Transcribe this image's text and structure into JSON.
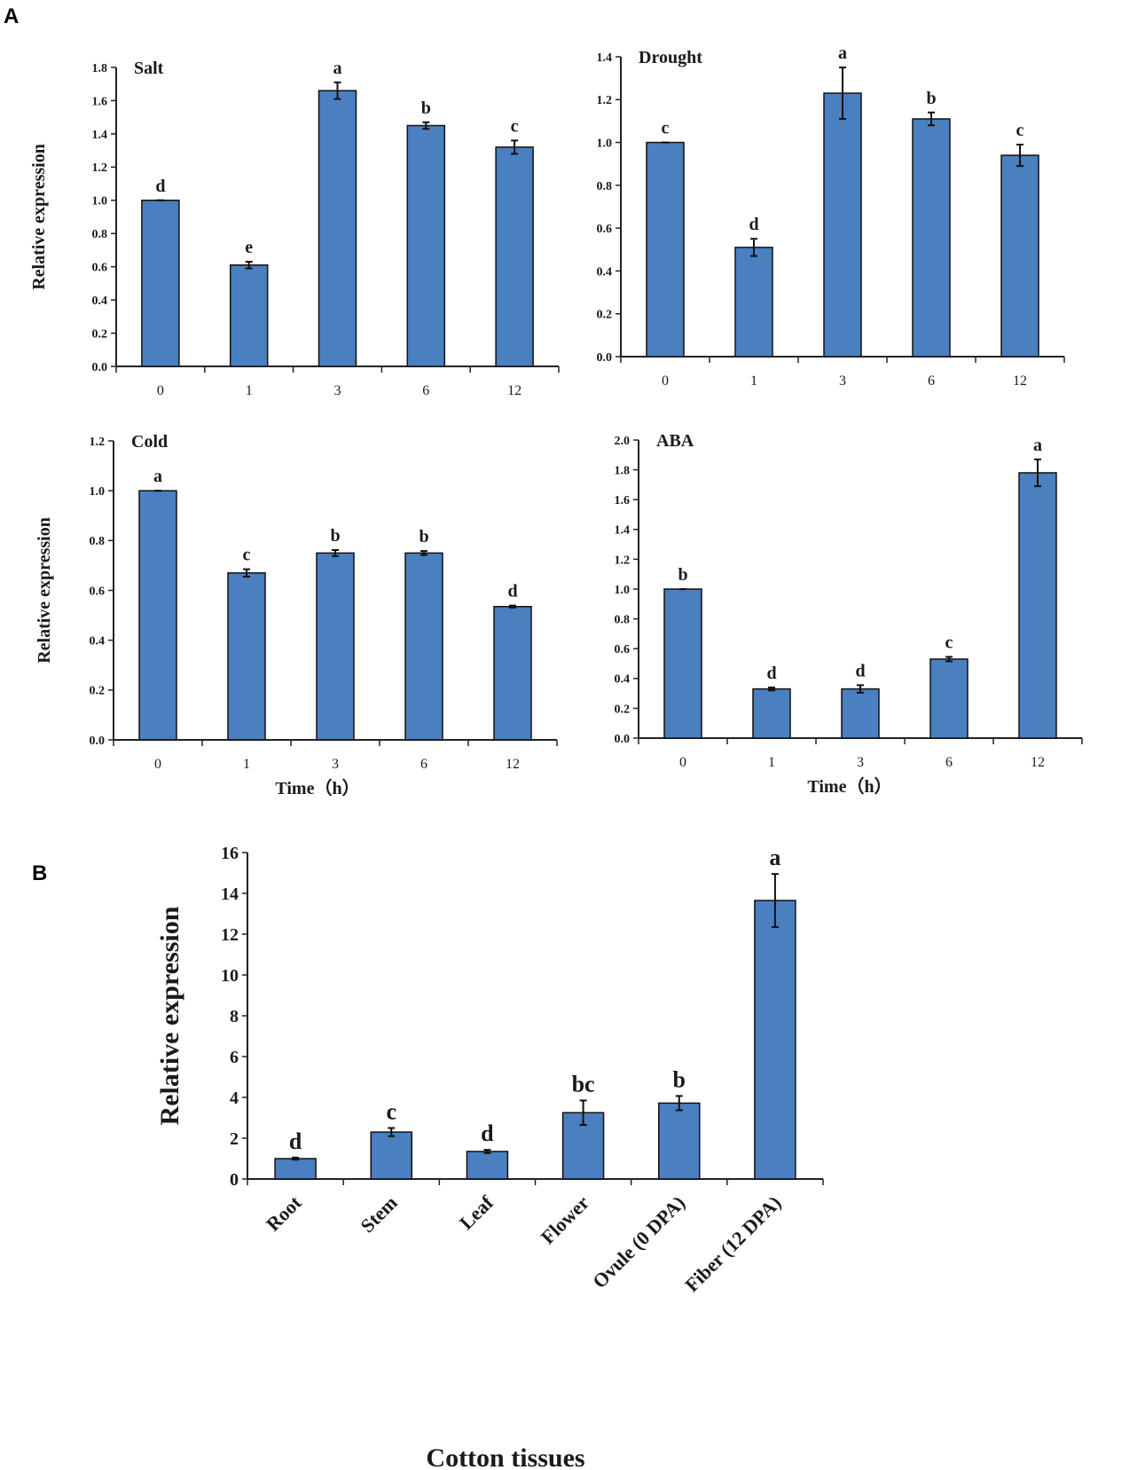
{
  "panel_labels": {
    "a": "A",
    "b": "B"
  },
  "colors": {
    "bar": "#4a7fc0",
    "bar_edge": "#111111",
    "axis": "#222222"
  },
  "chart_data": [
    {
      "type": "bar",
      "id": "salt",
      "title": "Salt",
      "categories": [
        "0",
        "1",
        "3",
        "6",
        "12"
      ],
      "values": [
        1.0,
        0.61,
        1.66,
        1.45,
        1.32
      ],
      "errors": [
        0.0,
        0.02,
        0.05,
        0.02,
        0.04
      ],
      "letters": [
        "d",
        "e",
        "a",
        "b",
        "c"
      ],
      "ylabel": "Relative expression",
      "xlabel": "",
      "ylim": [
        0,
        1.8
      ],
      "ticks": [
        "0.0",
        "0.2",
        "0.4",
        "0.6",
        "0.8",
        "1.0",
        "1.2",
        "1.4",
        "1.6",
        "1.8"
      ]
    },
    {
      "type": "bar",
      "id": "drought",
      "title": "Drought",
      "categories": [
        "0",
        "1",
        "3",
        "6",
        "12"
      ],
      "values": [
        1.0,
        0.51,
        1.23,
        1.11,
        0.94
      ],
      "errors": [
        0.0,
        0.04,
        0.12,
        0.03,
        0.05
      ],
      "letters": [
        "c",
        "d",
        "a",
        "b",
        "c"
      ],
      "ylabel": "",
      "xlabel": "",
      "ylim": [
        0,
        1.4
      ],
      "ticks": [
        "0.0",
        "0.2",
        "0.4",
        "0.6",
        "0.8",
        "1.0",
        "1.2",
        "1.4"
      ]
    },
    {
      "type": "bar",
      "id": "cold",
      "title": "Cold",
      "categories": [
        "0",
        "1",
        "3",
        "6",
        "12"
      ],
      "values": [
        1.0,
        0.67,
        0.75,
        0.75,
        0.535
      ],
      "errors": [
        0.0,
        0.015,
        0.012,
        0.008,
        0.004
      ],
      "letters": [
        "a",
        "c",
        "b",
        "b",
        "d"
      ],
      "ylabel": "Relative expression",
      "xlabel": "Time（h）",
      "ylim": [
        0,
        1.2
      ],
      "ticks": [
        "0.0",
        "0.2",
        "0.4",
        "0.6",
        "0.8",
        "1.0",
        "1.2"
      ]
    },
    {
      "type": "bar",
      "id": "aba",
      "title": "ABA",
      "categories": [
        "0",
        "1",
        "3",
        "6",
        "12"
      ],
      "values": [
        1.0,
        0.33,
        0.33,
        0.53,
        1.78
      ],
      "errors": [
        0.0,
        0.01,
        0.025,
        0.015,
        0.09
      ],
      "letters": [
        "b",
        "d",
        "d",
        "c",
        "a"
      ],
      "ylabel": "",
      "xlabel": "Time（h）",
      "ylim": [
        0,
        2.0
      ],
      "ticks": [
        "0.0",
        "0.2",
        "0.4",
        "0.6",
        "0.8",
        "1.0",
        "1.2",
        "1.4",
        "1.6",
        "1.8",
        "2.0"
      ]
    },
    {
      "type": "bar",
      "id": "tissues",
      "title": "",
      "categories": [
        "Root",
        "Stem",
        "Leaf",
        "Flower",
        "Ovule (0 DPA)",
        "Fiber (12 DPA)"
      ],
      "values": [
        1.0,
        2.3,
        1.35,
        3.25,
        3.72,
        13.65
      ],
      "errors": [
        0.05,
        0.2,
        0.08,
        0.6,
        0.35,
        1.3
      ],
      "letters": [
        "d",
        "c",
        "d",
        "bc",
        "b",
        "a"
      ],
      "ylabel": "Relative expression",
      "xlabel": "Cotton tissues",
      "ylim": [
        0,
        16
      ],
      "ticks": [
        "0",
        "2",
        "4",
        "6",
        "8",
        "10",
        "12",
        "14",
        "16"
      ]
    }
  ]
}
